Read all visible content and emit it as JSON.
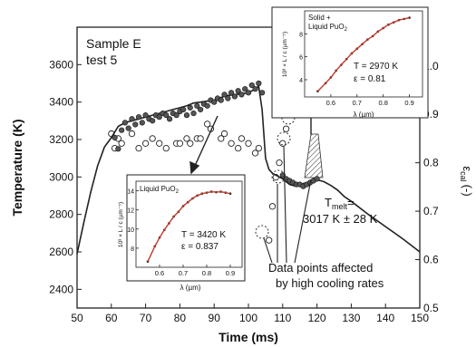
{
  "chart_data": {
    "type": "line",
    "sample_label": "Sample E",
    "test_label": "test 5",
    "xlabel": "Time (ms)",
    "ylabel": "Temperature (K)",
    "y2label_main": "ε",
    "y2label_sub": "cal",
    "y2label_unit": "(-)",
    "xlim": [
      50,
      150
    ],
    "ylim": [
      2300,
      3800
    ],
    "y2lim": [
      0.5,
      1.08
    ],
    "xticks": [
      "50",
      "60",
      "70",
      "80",
      "90",
      "100",
      "110",
      "120",
      "130",
      "140",
      "150"
    ],
    "yticks": [
      "2400",
      "2600",
      "2800",
      "3000",
      "3200",
      "3400",
      "3600"
    ],
    "y2ticks": [
      "0.5",
      "0.6",
      "0.7",
      "0.8",
      "0.9",
      "1.0"
    ],
    "temperature_curve": {
      "x": [
        50,
        52,
        54,
        56,
        58,
        60,
        61,
        62,
        64,
        66,
        68,
        70,
        72,
        74,
        76,
        78,
        80,
        82,
        84,
        86,
        88,
        90,
        92,
        94,
        96,
        98,
        100,
        102,
        103,
        104,
        105,
        106,
        107,
        108,
        109,
        110,
        112,
        114,
        116,
        118,
        120,
        122,
        124,
        126,
        128,
        130,
        135,
        140,
        145,
        150
      ],
      "y": [
        2590,
        2760,
        2920,
        3060,
        3160,
        3210,
        3240,
        3270,
        3290,
        3300,
        3310,
        3320,
        3330,
        3340,
        3350,
        3360,
        3370,
        3380,
        3395,
        3400,
        3405,
        3410,
        3425,
        3435,
        3440,
        3445,
        3450,
        3470,
        3485,
        3360,
        3100,
        3040,
        3020,
        3010,
        3000,
        2990,
        2960,
        2950,
        2965,
        2975,
        2985,
        2975,
        2955,
        2930,
        2895,
        2870,
        2800,
        2735,
        2670,
        2600
      ]
    },
    "temperature_points": {
      "x": [
        61,
        62,
        63,
        64,
        65,
        66,
        67,
        68,
        69,
        70,
        71,
        72,
        73,
        74,
        75,
        76,
        77,
        78,
        79,
        80,
        81,
        82,
        83,
        84,
        85,
        86,
        87,
        88,
        89,
        90,
        91,
        92,
        93,
        94,
        95,
        96,
        97,
        98,
        99,
        100,
        101,
        102,
        103,
        104,
        110,
        111,
        112,
        113,
        114,
        115,
        116,
        117,
        118,
        119,
        120
      ],
      "y": [
        3210,
        3150,
        3250,
        3290,
        3260,
        3310,
        3280,
        3320,
        3290,
        3330,
        3310,
        3300,
        3330,
        3320,
        3340,
        3330,
        3310,
        3340,
        3330,
        3350,
        3360,
        3330,
        3370,
        3340,
        3380,
        3360,
        3390,
        3380,
        3410,
        3400,
        3420,
        3410,
        3440,
        3420,
        3450,
        3430,
        3460,
        3440,
        3470,
        3450,
        3490,
        3470,
        3500,
        3450,
        3010,
        2990,
        2980,
        2970,
        2960,
        2960,
        2950,
        2960,
        2970,
        2980,
        2990
      ]
    },
    "emissivity_points": {
      "x": [
        60,
        61,
        62,
        63,
        66,
        68,
        70,
        72,
        74,
        76,
        79,
        80,
        82,
        83,
        85,
        86,
        88,
        89,
        92,
        93,
        95,
        97,
        98,
        100,
        102,
        103,
        106,
        107,
        108,
        109,
        110,
        111
      ],
      "y": [
        0.86,
        0.83,
        0.85,
        0.84,
        0.86,
        0.83,
        0.84,
        0.85,
        0.84,
        0.83,
        0.84,
        0.84,
        0.85,
        0.84,
        0.85,
        0.85,
        0.88,
        0.87,
        0.85,
        0.86,
        0.84,
        0.83,
        0.85,
        0.84,
        0.82,
        0.83,
        0.64,
        0.71,
        0.77,
        0.8,
        0.84,
        0.87
      ]
    },
    "annotation_points_x": [
      106,
      109,
      111
    ],
    "melt_label_main": "T",
    "melt_label_sub": "melt",
    "melt_label_suffix": "=",
    "melt_value": "3017 K ± 28 K",
    "affected_note_line1": "Data points affected",
    "affected_note_line2": "by high cooling rates",
    "inset_liquid": {
      "title_main": "Liquid PuO",
      "title_sub": "2",
      "ylabel": "10³ × L / c (µm⁻⁵)",
      "xlabel": "λ (µm)",
      "xticks": [
        "0.6",
        "0.7",
        "0.8",
        "0.9"
      ],
      "yticks": [
        "8",
        "10",
        "12",
        "14"
      ],
      "xlim": [
        0.5,
        0.95
      ],
      "ylim": [
        6,
        15
      ],
      "fit_text_T": "T = 3420 K",
      "fit_text_eps": "ε = 0.837",
      "data_x": [
        0.55,
        0.58,
        0.6,
        0.62,
        0.64,
        0.66,
        0.68,
        0.7,
        0.72,
        0.74,
        0.76,
        0.78,
        0.8,
        0.82,
        0.84,
        0.86,
        0.88,
        0.9
      ],
      "data_y": [
        6.6,
        8.2,
        9.1,
        9.9,
        10.6,
        11.3,
        11.8,
        12.4,
        12.8,
        13.2,
        13.5,
        13.7,
        13.8,
        13.9,
        13.85,
        13.9,
        13.8,
        13.7
      ]
    },
    "inset_solid": {
      "title_line1": "Solid +",
      "title_line2_main": "Liquid PuO",
      "title_line2_sub": "2",
      "ylabel": "10³ × L / c (µm⁻⁵)",
      "xlabel": "λ (µm)",
      "xticks": [
        "0.6",
        "0.7",
        "0.8",
        "0.9"
      ],
      "yticks": [
        "4",
        "6",
        "8"
      ],
      "xlim": [
        0.5,
        0.95
      ],
      "ylim": [
        2.5,
        10
      ],
      "fit_text_T": "T = 2970 K",
      "fit_text_eps": "ε = 0.81",
      "data_x": [
        0.55,
        0.58,
        0.6,
        0.62,
        0.64,
        0.66,
        0.68,
        0.7,
        0.72,
        0.74,
        0.76,
        0.78,
        0.8,
        0.82,
        0.84,
        0.86,
        0.88,
        0.9
      ],
      "data_y": [
        3.0,
        3.7,
        4.2,
        4.8,
        5.3,
        5.8,
        6.3,
        6.7,
        7.1,
        7.5,
        7.8,
        8.2,
        8.5,
        8.8,
        9.0,
        9.2,
        9.3,
        9.4
      ]
    },
    "colors": {
      "curve": "#222222",
      "fit": "#c0392b",
      "points": "#ffffff"
    }
  }
}
